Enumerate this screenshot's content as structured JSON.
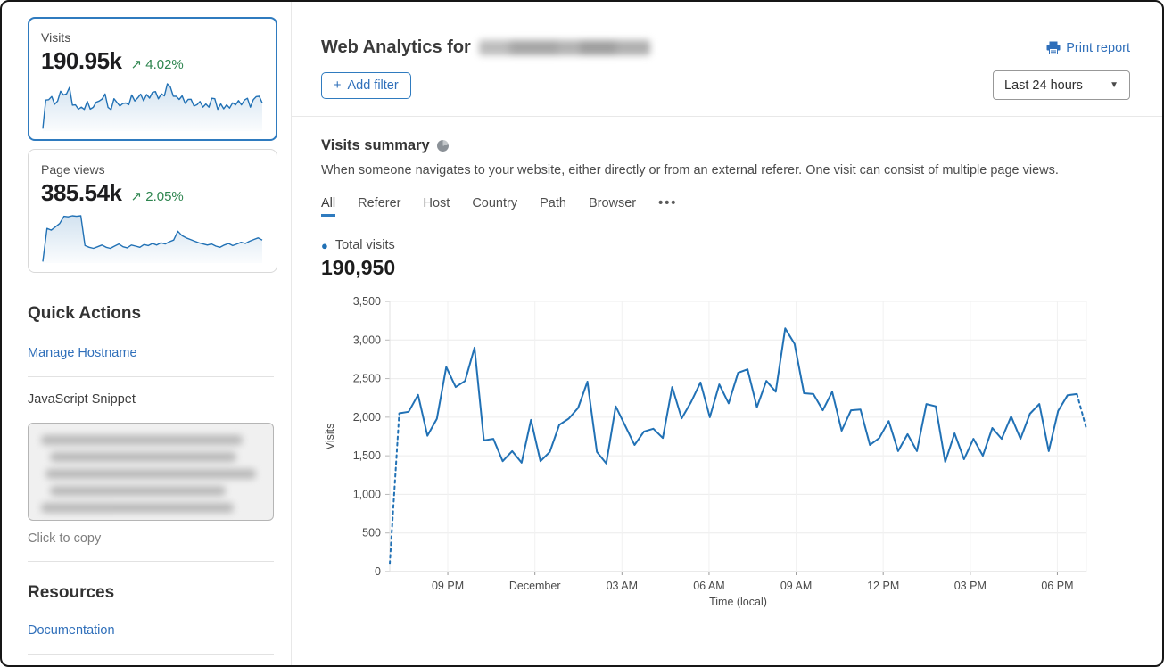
{
  "sidebar": {
    "cards": [
      {
        "label": "Visits",
        "value": "190.95k",
        "delta": "4.02%",
        "trend": "up",
        "selected": true
      },
      {
        "label": "Page views",
        "value": "385.54k",
        "delta": "2.05%",
        "trend": "up",
        "selected": false
      }
    ],
    "quick_actions": {
      "title": "Quick Actions",
      "manage_hostname_label": "Manage Hostname",
      "snippet_label": "JavaScript Snippet",
      "copy_hint": "Click to copy"
    },
    "resources": {
      "title": "Resources",
      "documentation_label": "Documentation"
    }
  },
  "header": {
    "title_prefix": "Web Analytics for",
    "print_label": "Print report",
    "add_filter_label": "Add filter",
    "range_selected": "Last 24 hours"
  },
  "summary": {
    "title": "Visits summary",
    "description": "When someone navigates to your website, either directly or from an external referer. One visit can consist of multiple page views.",
    "tabs": [
      "All",
      "Referer",
      "Host",
      "Country",
      "Path",
      "Browser"
    ],
    "more_tab": "•••",
    "active_tab": "All",
    "legend_label": "Total visits",
    "total_value": "190,950"
  },
  "icons": {
    "trend_up": "↗",
    "caret_down": "▾",
    "plus": "+",
    "legend_dot": "●"
  },
  "colors": {
    "accent_blue": "#2f6fba",
    "chart_blue": "#2171b5",
    "positive_green": "#2e854f",
    "selected_card_border": "#2f7bbf",
    "grid_line": "#ececec",
    "axis_line": "#d6d6d6"
  },
  "chart_data": [
    {
      "id": "visits-timeseries",
      "type": "line",
      "title": "Total visits",
      "xlabel": "Time (local)",
      "ylabel": "Visits",
      "ylim": [
        0,
        3500
      ],
      "grid": true,
      "legend_position": "top-left-above-chart",
      "y_ticks": [
        0,
        500,
        1000,
        1500,
        2000,
        2500,
        3000,
        3500
      ],
      "x_ticks": [
        {
          "label": "09 PM",
          "f": 0.0833
        },
        {
          "label": "December",
          "f": 0.2083
        },
        {
          "label": "03 AM",
          "f": 0.3333
        },
        {
          "label": "06 AM",
          "f": 0.4583
        },
        {
          "label": "09 AM",
          "f": 0.5833
        },
        {
          "label": "12 PM",
          "f": 0.7083
        },
        {
          "label": "03 PM",
          "f": 0.8333
        },
        {
          "label": "06 PM",
          "f": 0.9583
        }
      ],
      "dashed_prefix_points": 2,
      "dashed_suffix_points": 2,
      "series": [
        {
          "name": "Total visits",
          "color": "#2171b5",
          "values": [
            100,
            2050,
            2070,
            2290,
            1760,
            1980,
            2650,
            2390,
            2470,
            2900,
            1700,
            1720,
            1430,
            1560,
            1410,
            1965,
            1430,
            1550,
            1900,
            1980,
            2120,
            2460,
            1550,
            1400,
            2140,
            1890,
            1640,
            1815,
            1850,
            1730,
            2390,
            1985,
            2195,
            2450,
            2000,
            2425,
            2180,
            2575,
            2620,
            2130,
            2470,
            2330,
            3150,
            2950,
            2310,
            2300,
            2090,
            2330,
            1825,
            2090,
            2100,
            1640,
            1730,
            1950,
            1560,
            1780,
            1560,
            2170,
            2140,
            1420,
            1790,
            1455,
            1720,
            1500,
            1860,
            1720,
            2010,
            1720,
            2045,
            2170,
            1560,
            2080,
            2285,
            2300,
            1850
          ]
        }
      ]
    },
    {
      "id": "visits-sparkline",
      "type": "line",
      "values": [
        100,
        2050,
        2070,
        2290,
        1760,
        1980,
        2650,
        2390,
        2470,
        2900,
        1700,
        1720,
        1430,
        1560,
        1410,
        1965,
        1430,
        1550,
        1900,
        1980,
        2120,
        2460,
        1550,
        1400,
        2140,
        1890,
        1640,
        1815,
        1850,
        1730,
        2390,
        1985,
        2195,
        2450,
        2000,
        2425,
        2180,
        2575,
        2620,
        2130,
        2470,
        2330,
        3150,
        2950,
        2310,
        2300,
        2090,
        2330,
        1825,
        2090,
        2100,
        1640,
        1730,
        1950,
        1560,
        1780,
        1560,
        2170,
        2140,
        1420,
        1790,
        1455,
        1720,
        1500,
        1860,
        1720,
        2010,
        1720,
        2045,
        2170,
        1560,
        2080,
        2285,
        2300,
        1850
      ]
    },
    {
      "id": "pageviews-sparkline",
      "type": "line",
      "values": [
        50,
        3050,
        2900,
        3200,
        3500,
        4150,
        4100,
        4200,
        4150,
        4200,
        1500,
        1350,
        1250,
        1400,
        1550,
        1350,
        1250,
        1450,
        1650,
        1400,
        1300,
        1550,
        1450,
        1350,
        1600,
        1500,
        1700,
        1550,
        1750,
        1650,
        1850,
        2000,
        2800,
        2400,
        2200,
        2050,
        1900,
        1750,
        1650,
        1550,
        1650,
        1450,
        1350,
        1550,
        1700,
        1500,
        1650,
        1800,
        1700,
        1900,
        2050,
        2200,
        2000
      ]
    }
  ]
}
